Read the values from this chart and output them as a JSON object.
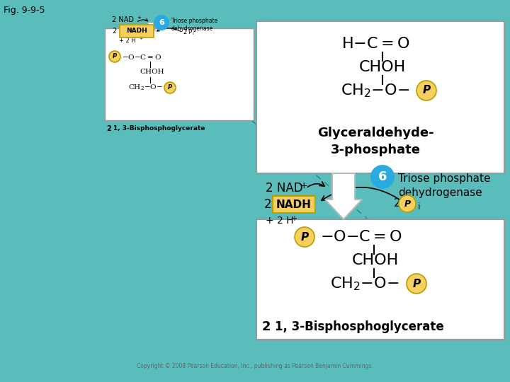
{
  "title": "Fig. 9-9-5",
  "bg_color": "#5bbcbc",
  "copyright": "Copyright © 2008 Pearson Education, Inc., publishing as Pearson Benjamin Cummings.",
  "step_circle_color": "#29abe2",
  "step_number": "6",
  "enzyme_text": "Triose phosphate\ndehydrogenase",
  "nad_text": "2 NAD",
  "nadh_box_color": "#f5d060",
  "nadh_text": "NADH",
  "nadh_prefix": "2",
  "nadh_label": "+ 2 H",
  "glyceraldehyde_label": "Glyceraldehyde-\n3-phosphate",
  "bisphosphoglycerate_label": "1, 3-Bisphosphoglycerate",
  "p_circle_color": "#f5d060",
  "p_circle_edge": "#b8a000",
  "dashed_line_color": "#2e8b8b",
  "white": "white",
  "box_edge": "#999999"
}
